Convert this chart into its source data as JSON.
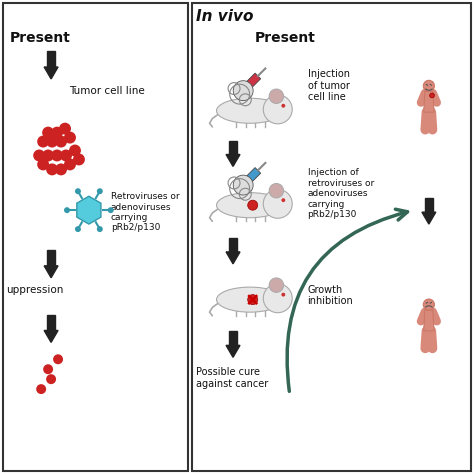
{
  "colors": {
    "red_dot": "#cc2222",
    "blue_virus": "#55ccdd",
    "mouse_body": "#e8e8e8",
    "person_body": "#d9897a",
    "syringe_red": "#cc3344",
    "syringe_blue": "#4499cc",
    "arrow_dark": "#222222",
    "arrow_teal": "#336655",
    "text_dark": "#111111",
    "border": "#333333",
    "white": "#ffffff"
  },
  "left_panel": {
    "present_label": "Present",
    "tumor_label": "Tumor cell line",
    "retro_label": "Retroviruses or\nadenoviruses\ncarrying\npRb2/p130",
    "suppression_label": "uppression"
  },
  "right_panel": {
    "title": "In vivo",
    "present_label": "Present",
    "label1": "Injection\nof tumor\ncell line",
    "label2": "Injection of\nretroviruses or\nadenoviruses\ncarrying\npRb2/p130",
    "label3": "Growth\ninhibition",
    "label4": "Possible cure\nagainst cancer"
  }
}
